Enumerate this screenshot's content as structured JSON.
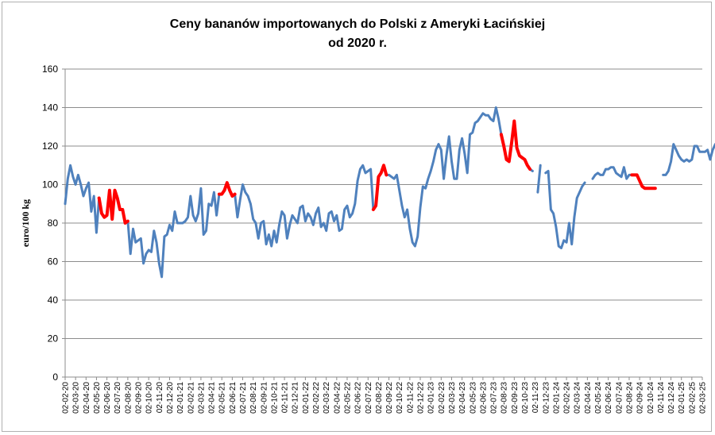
{
  "chart_data": {
    "type": "line",
    "title_line1": "Ceny bananów importowanych do Polski z Ameryki Łacińskiej",
    "title_line2": "od 2020 r.",
    "ylabel": "euro/100 kg",
    "ylim": [
      0,
      160
    ],
    "yticks": [
      0,
      20,
      40,
      60,
      80,
      100,
      120,
      140,
      160
    ],
    "grid": true,
    "x_categories": [
      "02-02-20",
      "02-03-20",
      "02-04-20",
      "02-05-20",
      "02-06-20",
      "02-07-20",
      "02-08-20",
      "02-09-20",
      "02-10-20",
      "02-11-20",
      "02-12-20",
      "02-01-21",
      "02-02-21",
      "02-03-21",
      "02-04-21",
      "02-05-21",
      "02-06-21",
      "02-07-21",
      "02-08-21",
      "02-09-21",
      "02-10-21",
      "02-11-21",
      "02-12-21",
      "02-01-22",
      "02-02-22",
      "02-03-22",
      "02-04-22",
      "02-05-22",
      "02-06-22",
      "02-07-22",
      "02-08-22",
      "02-09-22",
      "02-10-22",
      "02-11-22",
      "02-12-22",
      "02-01-23",
      "02-02-23",
      "02-03-23",
      "02-04-23",
      "02-05-23",
      "02-06-23",
      "02-07-23",
      "02-08-23",
      "02-09-23",
      "02-10-23",
      "02-11-23",
      "02-12-23",
      "02-01-24",
      "02-02-24",
      "02-03-24",
      "02-04-24",
      "02-05-24",
      "02-06-24",
      "02-07-24",
      "02-08-24",
      "02-09-24",
      "02-10-24",
      "02-11-24",
      "02-12-24",
      "02-01-25",
      "02-02-25",
      "02-03-25"
    ],
    "series": [
      {
        "color": "#4f81bd",
        "highlight_color": "#ff0000",
        "x_start": "02-02-20",
        "x_step_months": 0.25,
        "values": [
          90,
          103,
          110,
          104,
          100,
          105,
          100,
          94,
          98,
          101,
          86,
          94,
          75,
          93,
          85,
          83,
          84,
          97,
          82,
          97,
          93,
          87,
          87,
          80,
          81,
          64,
          77,
          70,
          71,
          72,
          59,
          64,
          66,
          65,
          76,
          70,
          59,
          52,
          73,
          74,
          79,
          76,
          86,
          80,
          80,
          80,
          81,
          83,
          94,
          84,
          81,
          85,
          98,
          74,
          76,
          90,
          89,
          96,
          84,
          95,
          95,
          97,
          101,
          97,
          94,
          95,
          83,
          92,
          100,
          96,
          94,
          90,
          82,
          80,
          72,
          80,
          81,
          69,
          74,
          68,
          76,
          70,
          79,
          86,
          84,
          72,
          79,
          84,
          82,
          80,
          88,
          89,
          81,
          85,
          83,
          79,
          85,
          88,
          78,
          80,
          76,
          85,
          86,
          81,
          84,
          76,
          77,
          87,
          89,
          83,
          85,
          90,
          102,
          108,
          110,
          106,
          107,
          108,
          87,
          89,
          104,
          106,
          110,
          105,
          105,
          104,
          103,
          105,
          97,
          89,
          83,
          87,
          77,
          70,
          68,
          73,
          88,
          99,
          98,
          103,
          107,
          112,
          118,
          121,
          118,
          103,
          115,
          125,
          112,
          103,
          103,
          118,
          124,
          116,
          106,
          126,
          127,
          132,
          133,
          135,
          137,
          136,
          136,
          134,
          133,
          140,
          134,
          126,
          120,
          113,
          112,
          122,
          133,
          119,
          115,
          114,
          113,
          110,
          108,
          107,
          null,
          96,
          110,
          null,
          106,
          107,
          87,
          85,
          78,
          68,
          67,
          71,
          70,
          80,
          69,
          83,
          93,
          96,
          99,
          101,
          null,
          null,
          103,
          105,
          106,
          105,
          105,
          108,
          108,
          109,
          109,
          106,
          105,
          104,
          109,
          103,
          105,
          105,
          105,
          105,
          null,
          99,
          98,
          98,
          98,
          98,
          98,
          null,
          null,
          105,
          105,
          107,
          112,
          121,
          118,
          115,
          113,
          112,
          113,
          112,
          113,
          120,
          120,
          117,
          117,
          117,
          118,
          113,
          118,
          121,
          117,
          118,
          112,
          112,
          112,
          102,
          101,
          101,
          102,
          102,
          101,
          103,
          104,
          106,
          110,
          null,
          111,
          103,
          92,
          114,
          111,
          111,
          null,
          113,
          116,
          112,
          112,
          121
        ],
        "highlight_segments": [
          [
            13,
            24
          ],
          [
            59,
            65
          ],
          [
            118,
            123
          ],
          [
            167,
            178
          ],
          [
            217,
            228
          ]
        ]
      }
    ]
  }
}
